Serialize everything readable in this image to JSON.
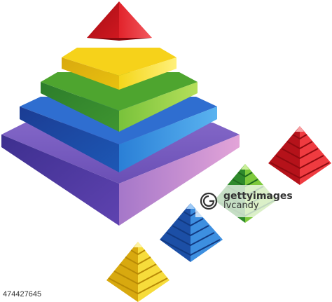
{
  "image": {
    "description_colors": {
      "red": "#d8171f",
      "yellow": "#f5d715",
      "green": "#6db833",
      "blue": "#1f6fc8",
      "purple": "#6a4fb5",
      "pink": "#d98fcf"
    }
  },
  "watermark": {
    "brand": "gettyimages",
    "credit": "lvcandy",
    "icon": "getty-logo-icon"
  },
  "image_id": "474427645"
}
